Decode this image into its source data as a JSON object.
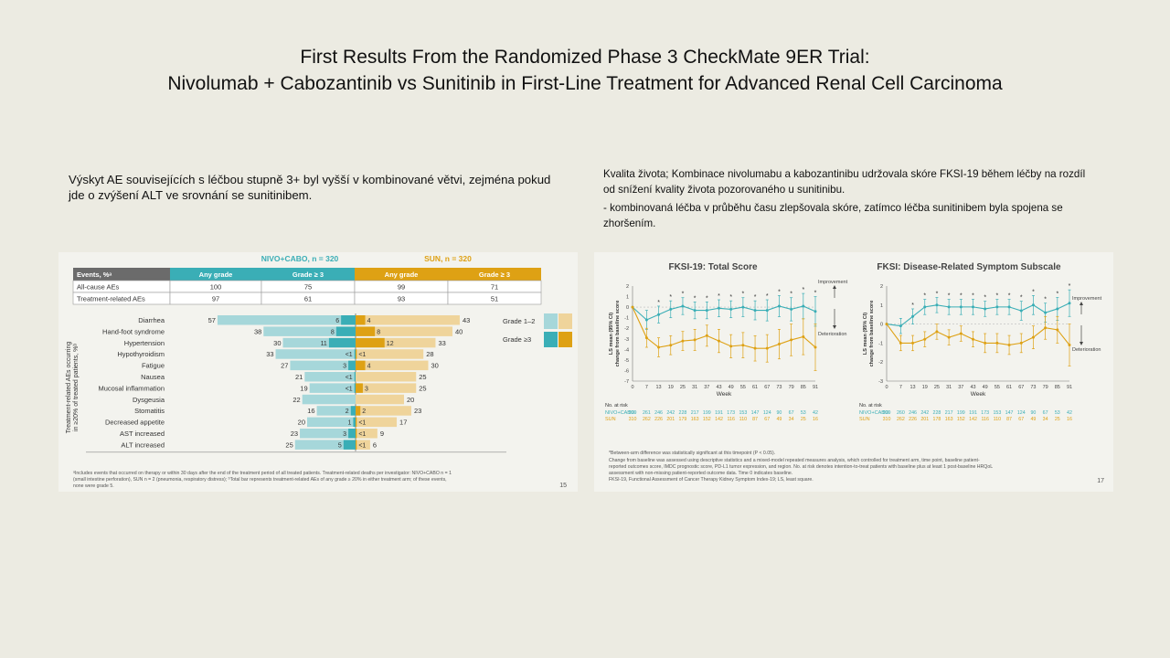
{
  "slide": {
    "title_line1": "First Results From the Randomized Phase 3 CheckMate 9ER Trial:",
    "title_line2": "Nivolumab + Cabozantinib vs Sunitinib in First-Line Treatment for Advanced Renal Cell Carcinoma",
    "left_text": "Výskyt AE souvisejících s léčbou stupně 3+ byl vyšší v kombinované větvi, zejména pokud jde o zvýšení ALT ve srovnání se sunitinibem.",
    "right_text_1": "Kvalita života; Kombinace nivolumabu a kabozantinibu udržovala skóre FKSI-19 během léčby na rozdíl od snížení kvality života pozorovaného u sunitinibu.",
    "right_text_2": "- kombinovaná léčba v průběhu času zlepšovala skóre, zatímco léčba sunitinibem byla spojena se zhoršením."
  },
  "colors": {
    "teal": "#3aaeb6",
    "teal_light": "#a6d7da",
    "gold": "#dea114",
    "gold_light": "#efd49b",
    "header_gray": "#6b6b6b"
  },
  "ae_panel": {
    "arm_nivo": "NIVO+CABO, n = 320",
    "arm_sun": "SUN, n = 320",
    "table_headers": [
      "Events, %ᵃ",
      "Any grade",
      "Grade ≥ 3",
      "Any grade",
      "Grade ≥ 3"
    ],
    "table_rows": [
      {
        "label": "All-cause AEs",
        "values": [
          "100",
          "75",
          "99",
          "71"
        ]
      },
      {
        "label": "Treatment-related AEs",
        "values": [
          "97",
          "61",
          "93",
          "51"
        ]
      }
    ],
    "ylabel_line1": "Treatment-related AEs occurring",
    "ylabel_line2": "in ≥20% of treated patients, %ᵇ",
    "legend_g12": "Grade 1–2",
    "legend_g3": "Grade ≥3",
    "footnote_line1": "ᵃIncludes events that occurred on therapy or within 30 days after the end of the treatment period of all treated patients. Treatment-related deaths per investigator: NIVO+CABO n = 1",
    "footnote_line2": "(small intestine perforation), SUN n = 2 (pneumonia, respiratory distress); ᵇTotal bar represents treatment-related AEs of any grade ≥ 20% in either treatment arm; of these events,",
    "footnote_line3": "none were grade 5.",
    "page_number": "15"
  },
  "qol_panel": {
    "total_title": "FKSI-19: Total Score",
    "subscale_title": "FKSI: Disease-Related Symptom Subscale",
    "ylabel_line1": "LS mean (95% CI)",
    "ylabel_line2": "change from baseline score",
    "xlabel": "Week",
    "improvement": "Improvement",
    "deterioration": "Deterioration",
    "asterisk": "*",
    "no_at_risk": "No. at risk",
    "nivo_label": "NIVO+CABO",
    "sun_label": "SUN",
    "footnote_line1": "*Between-arm difference was statistically significant at this timepoint (P < 0.05).",
    "footnote_line2": "Change from baseline was assessed using descriptive statistics and a mixed-model repeated measures analysis, which controlled for treatment arm, time point, baseline patient-",
    "footnote_line3": "reported outcomes score, IMDC prognostic score, PD-L1 tumor expression, and region. No. at risk denotes intention-to-treat patients with baseline plus at least 1 post-baseline HRQoL",
    "footnote_line4": "assessment with non-missing patient-reported outcome data. Time 0 indicates baseline.",
    "footnote_line5": "FKSI-19, Functional Assessment of Cancer Therapy Kidney Symptom Index-19; LS, least square.",
    "page_number": "17"
  },
  "chart_data": [
    {
      "type": "bar",
      "title": "",
      "orientation": "horizontal-butterfly",
      "categories": [
        "Diarrhea",
        "Hand-foot syndrome",
        "Hypertension",
        "Hypothyroidism",
        "Fatigue",
        "Nausea",
        "Mucosal inflammation",
        "Dysgeusia",
        "Stomatitis",
        "Decreased appetite",
        "AST increased",
        "ALT increased"
      ],
      "series": [
        {
          "name": "NIVO+CABO",
          "any_grade": [
            57,
            38,
            30,
            33,
            27,
            21,
            19,
            22,
            16,
            20,
            23,
            25
          ],
          "grade3_labels": [
            "6",
            "8",
            "11",
            "<1",
            "3",
            "<1",
            "<1",
            "",
            "2",
            "1",
            "3",
            "5"
          ],
          "grade3": [
            6,
            8,
            11,
            0.5,
            3,
            0.5,
            0.5,
            0,
            2,
            1,
            3,
            5
          ]
        },
        {
          "name": "SUN",
          "any_grade": [
            43,
            40,
            33,
            28,
            30,
            25,
            25,
            20,
            23,
            17,
            9,
            6
          ],
          "grade3_labels": [
            "4",
            "8",
            "12",
            "<1",
            "4",
            "",
            "3",
            "",
            "2",
            "<1",
            "<1",
            "<1"
          ],
          "grade3": [
            4,
            8,
            12,
            0.5,
            4,
            0,
            3,
            0,
            2,
            0.5,
            0.5,
            0.5
          ]
        }
      ],
      "ylabel": "Treatment-related AEs occurring in ≥20% of treated patients, %ᵇ"
    },
    {
      "type": "line",
      "title": "FKSI-19: Total Score",
      "xlabel": "Week",
      "ylabel": "LS mean (95% CI) change from baseline score",
      "x": [
        0,
        7,
        13,
        19,
        25,
        31,
        37,
        43,
        49,
        55,
        61,
        67,
        73,
        79,
        85,
        91
      ],
      "ylim": [
        -7,
        2
      ],
      "series": [
        {
          "name": "NIVO+CABO",
          "values": [
            0,
            -1.2,
            -0.7,
            -0.2,
            0.1,
            -0.3,
            -0.3,
            -0.1,
            -0.2,
            0,
            -0.3,
            -0.3,
            0.1,
            -0.2,
            0.1,
            -0.4
          ],
          "ci_halfwidth": [
            0,
            0.9,
            0.8,
            0.8,
            0.8,
            0.8,
            0.8,
            0.8,
            0.8,
            0.9,
            0.9,
            1.0,
            1.0,
            1.1,
            1.2,
            1.4
          ],
          "at_risk": [
            299,
            261,
            246,
            242,
            228,
            217,
            199,
            191,
            173,
            153,
            147,
            124,
            90,
            67,
            53,
            42
          ]
        },
        {
          "name": "SUN",
          "values": [
            0,
            -2.9,
            -3.8,
            -3.6,
            -3.2,
            -3.1,
            -2.7,
            -3.2,
            -3.7,
            -3.6,
            -3.9,
            -3.9,
            -3.5,
            -3.1,
            -2.8,
            -3.8
          ],
          "ci_halfwidth": [
            0,
            0.9,
            0.9,
            0.9,
            0.9,
            1.0,
            1.0,
            1.1,
            1.1,
            1.2,
            1.2,
            1.3,
            1.4,
            1.5,
            1.7,
            2.2
          ],
          "at_risk": [
            310,
            262,
            226,
            201,
            179,
            163,
            152,
            142,
            116,
            110,
            87,
            67,
            49,
            34,
            25,
            16
          ]
        }
      ],
      "significant_weeks": [
        13,
        19,
        25,
        31,
        37,
        43,
        49,
        55,
        61,
        67,
        73,
        79,
        85,
        91
      ]
    },
    {
      "type": "line",
      "title": "FKSI: Disease-Related Symptom Subscale",
      "xlabel": "Week",
      "ylabel": "LS mean (95% CI) change from baseline score",
      "x": [
        0,
        7,
        13,
        19,
        25,
        31,
        37,
        43,
        49,
        55,
        61,
        67,
        73,
        79,
        85,
        91
      ],
      "ylim": [
        -3,
        2
      ],
      "series": [
        {
          "name": "NIVO+CABO",
          "values": [
            0,
            -0.1,
            0.4,
            0.9,
            1.0,
            0.9,
            0.9,
            0.9,
            0.8,
            0.9,
            0.9,
            0.7,
            1.0,
            0.6,
            0.8,
            1.1
          ],
          "ci_halfwidth": [
            0,
            0.4,
            0.4,
            0.4,
            0.4,
            0.4,
            0.4,
            0.4,
            0.4,
            0.4,
            0.4,
            0.5,
            0.5,
            0.5,
            0.6,
            0.7
          ],
          "at_risk": [
            299,
            260,
            246,
            242,
            228,
            217,
            199,
            191,
            173,
            153,
            147,
            124,
            90,
            67,
            53,
            42
          ]
        },
        {
          "name": "SUN",
          "values": [
            0,
            -1.0,
            -1.0,
            -0.8,
            -0.4,
            -0.7,
            -0.5,
            -0.8,
            -1.0,
            -1.0,
            -1.1,
            -1.0,
            -0.7,
            -0.2,
            -0.3,
            -1.1
          ],
          "ci_halfwidth": [
            0,
            0.4,
            0.4,
            0.4,
            0.4,
            0.4,
            0.4,
            0.4,
            0.5,
            0.5,
            0.5,
            0.5,
            0.6,
            0.6,
            0.7,
            1.1
          ],
          "at_risk": [
            310,
            262,
            226,
            201,
            178,
            163,
            152,
            142,
            116,
            110,
            87,
            67,
            49,
            34,
            25,
            16
          ]
        }
      ],
      "significant_weeks": [
        13,
        19,
        25,
        31,
        37,
        43,
        49,
        55,
        61,
        67,
        73,
        79,
        85,
        91
      ]
    }
  ]
}
